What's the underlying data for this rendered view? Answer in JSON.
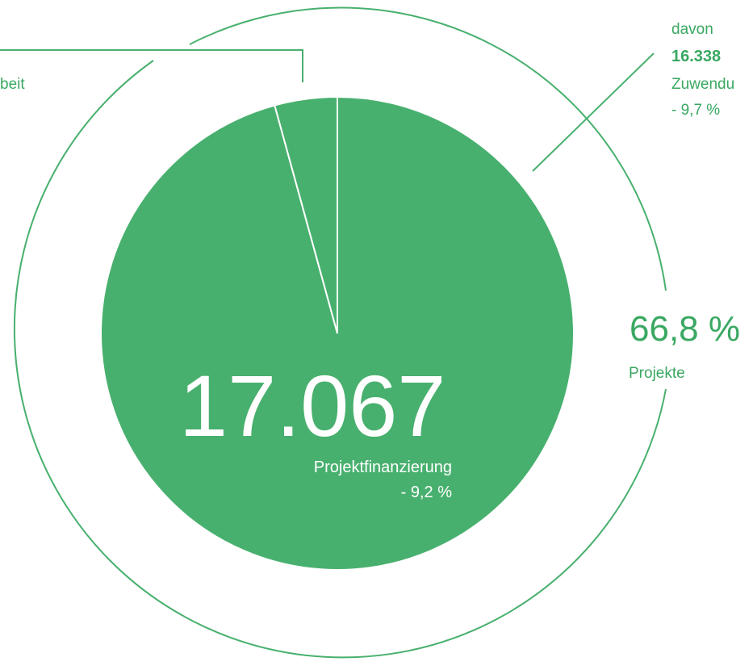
{
  "total": {
    "value": "17.067",
    "label": "Projektfinanzierung",
    "change": "- 9,2 %"
  },
  "share": {
    "value": "66,8 %",
    "label": "Projekte"
  },
  "callout_right": {
    "prefix": "davon",
    "value": "16.338",
    "label": "Zuwendu",
    "change": "- 9,7 %"
  },
  "callout_left": {
    "label": "beit"
  },
  "slices": [
    {
      "value": 16338,
      "color": "#48b06e"
    },
    {
      "value": 729,
      "color": "#48b06e"
    }
  ]
}
